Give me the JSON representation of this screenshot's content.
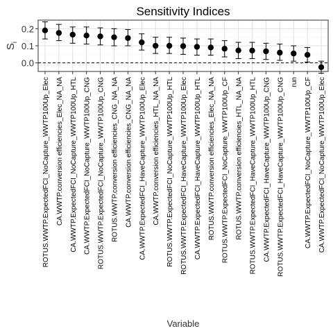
{
  "chart_data": {
    "type": "scatter",
    "title": "Sensitivity Indices",
    "xlabel": "Variable",
    "ylabel": "S",
    "ylabel_subscript": "i",
    "ylim": [
      -0.05,
      0.25
    ],
    "yticks": [
      0.0,
      0.1,
      0.2
    ],
    "ytick_labels": [
      "0.0",
      "0.1",
      "0.2"
    ],
    "reference_line": 0,
    "grid": true,
    "categories": [
      "ROTUS.WWTP.ExpectedFCI_NoCapture_WWTP100Up_Elec",
      "CA.WWTP.conversion efficiencies_Elec_NA_NA",
      "CA.WWTP.ExpectedFCI_NoCapture_WWTP100Up_HTL",
      "CA.WWTP.ExpectedFCI_NoCapture_WWTP100Up_CNG",
      "ROTUS.WWTP.ExpectedFCI_NoCapture_WWTP100Up_CNG",
      "ROTUS.WWTP.conversion efficiencies_CNG_NA_NA",
      "CA.WWTP.conversion efficiencies_CNG_NA_NA",
      "CA.WWTP.ExpectedFCI_HaveCapture_WWTP100Up_Elec",
      "CA.WWTP.conversion efficiencies_HTL_NA_NA",
      "ROTUS.WWTP.ExpectedFCI_NoCapture_WWTP100Up_HTL",
      "ROTUS.WWTP.ExpectedFCI_HaveCapture_WWTP100Up_Elec",
      "CA.WWTP.ExpectedFCI_HaveCapture_WWTP100Up_HTL",
      "ROTUS.WWTP.conversion efficiencies_Elec_NA_NA",
      "ROTUS.WWTP.ExpectedFCI_NoCapture_WWTP100Up_CF",
      "ROTUS.WWTP.conversion efficiencies_HTL_NA_NA",
      "ROTUS.WWTP.ExpectedFCI_HaveCapture_WWTP100Up_HTL",
      "CA.WWTP.ExpectedFCI_HaveCapture_WWTP100Up_CNG",
      "ROTUS.WWTP.ExpectedFCI_HaveCapture_WWTP100Up_CNG",
      "run",
      "CA.WWTP.ExpectedFCI_NoCapture_WWTP100Up_CF",
      "CA.WWTP.ExpectedFCI_NoCapture_WWTP100Up_Elec"
    ],
    "values": [
      0.19,
      0.175,
      0.165,
      0.16,
      0.155,
      0.15,
      0.145,
      0.12,
      0.1,
      0.1,
      0.098,
      0.094,
      0.09,
      0.083,
      0.073,
      0.072,
      0.068,
      0.06,
      0.055,
      0.047,
      -0.025
    ],
    "lower": [
      0.14,
      0.13,
      0.115,
      0.11,
      0.105,
      0.1,
      0.1,
      0.075,
      0.055,
      0.055,
      0.05,
      0.045,
      0.045,
      0.035,
      0.025,
      0.025,
      0.02,
      0.015,
      0.01,
      0.005,
      -0.06
    ],
    "upper": [
      0.24,
      0.225,
      0.21,
      0.21,
      0.205,
      0.2,
      0.195,
      0.17,
      0.15,
      0.15,
      0.145,
      0.14,
      0.14,
      0.13,
      0.12,
      0.12,
      0.115,
      0.11,
      0.1,
      0.09,
      0.01
    ],
    "colors": {
      "point": "#000000",
      "errorbar": "#000000",
      "grid_major": "#e0e0e0",
      "grid_minor": "#f2f2f2",
      "panel_border": "#333333",
      "reference_line": "#000000"
    }
  }
}
